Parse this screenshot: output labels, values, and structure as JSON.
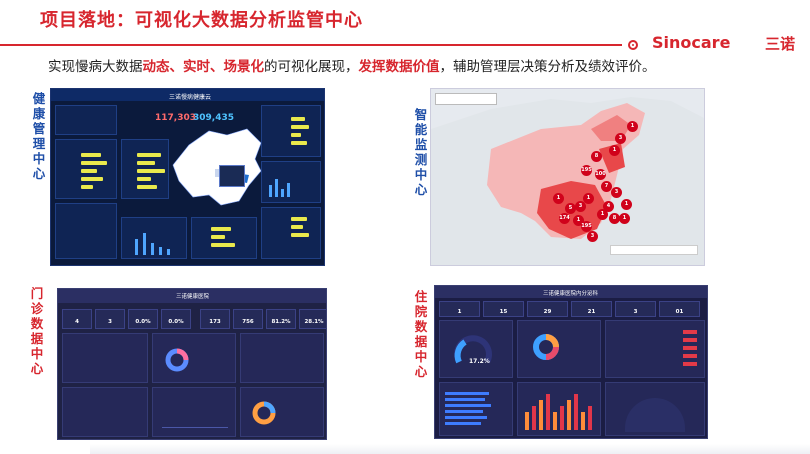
{
  "header": {
    "title": "项目落地：可视化大数据分析监管中心",
    "logo_text": "Sinocare",
    "logo_cn": "三诺",
    "subtitle_parts": [
      {
        "text": "实现慢病大数据",
        "hl": false
      },
      {
        "text": "动态、实时、场景化",
        "hl": true
      },
      {
        "text": "的可视化展现，",
        "hl": false
      },
      {
        "text": "发挥数据价值",
        "hl": true
      },
      {
        "text": "，辅助管理层决策分析及绩效评价。",
        "hl": false
      }
    ]
  },
  "sections": {
    "health": "健康管理中心",
    "monitor": "智能监测中心",
    "outpatient": "门诊数据中心",
    "inpatient": "住院数据中心"
  },
  "health_dash": {
    "title": "三诺慢病健康云",
    "num1": "117,303",
    "num2": "309,435"
  },
  "outpatient_dash": {
    "title": "三诺健康医院",
    "kpis": [
      "4",
      "3",
      "0.0%",
      "0.0%",
      "173",
      "756",
      "81.2%",
      "28.1%"
    ]
  },
  "inpatient_dash": {
    "title": "三诺健康医院内分泌科",
    "kpis": [
      "1",
      "15",
      "29",
      "21",
      "3",
      "01"
    ],
    "gauge_value": "17.2%"
  },
  "map_dash": {
    "markers": [
      "1",
      "3",
      "1",
      "8",
      "195",
      "100",
      "7",
      "3",
      "4",
      "1",
      "1",
      "3",
      "5",
      "174",
      "1",
      "195",
      "3",
      "1",
      "8",
      "1",
      "1"
    ]
  },
  "colors": {
    "brand_red": "#d7262e",
    "label_blue": "#1f4fa8",
    "dashboard_bg": "#0b1a3c",
    "panel_bg": "#1f2245"
  }
}
